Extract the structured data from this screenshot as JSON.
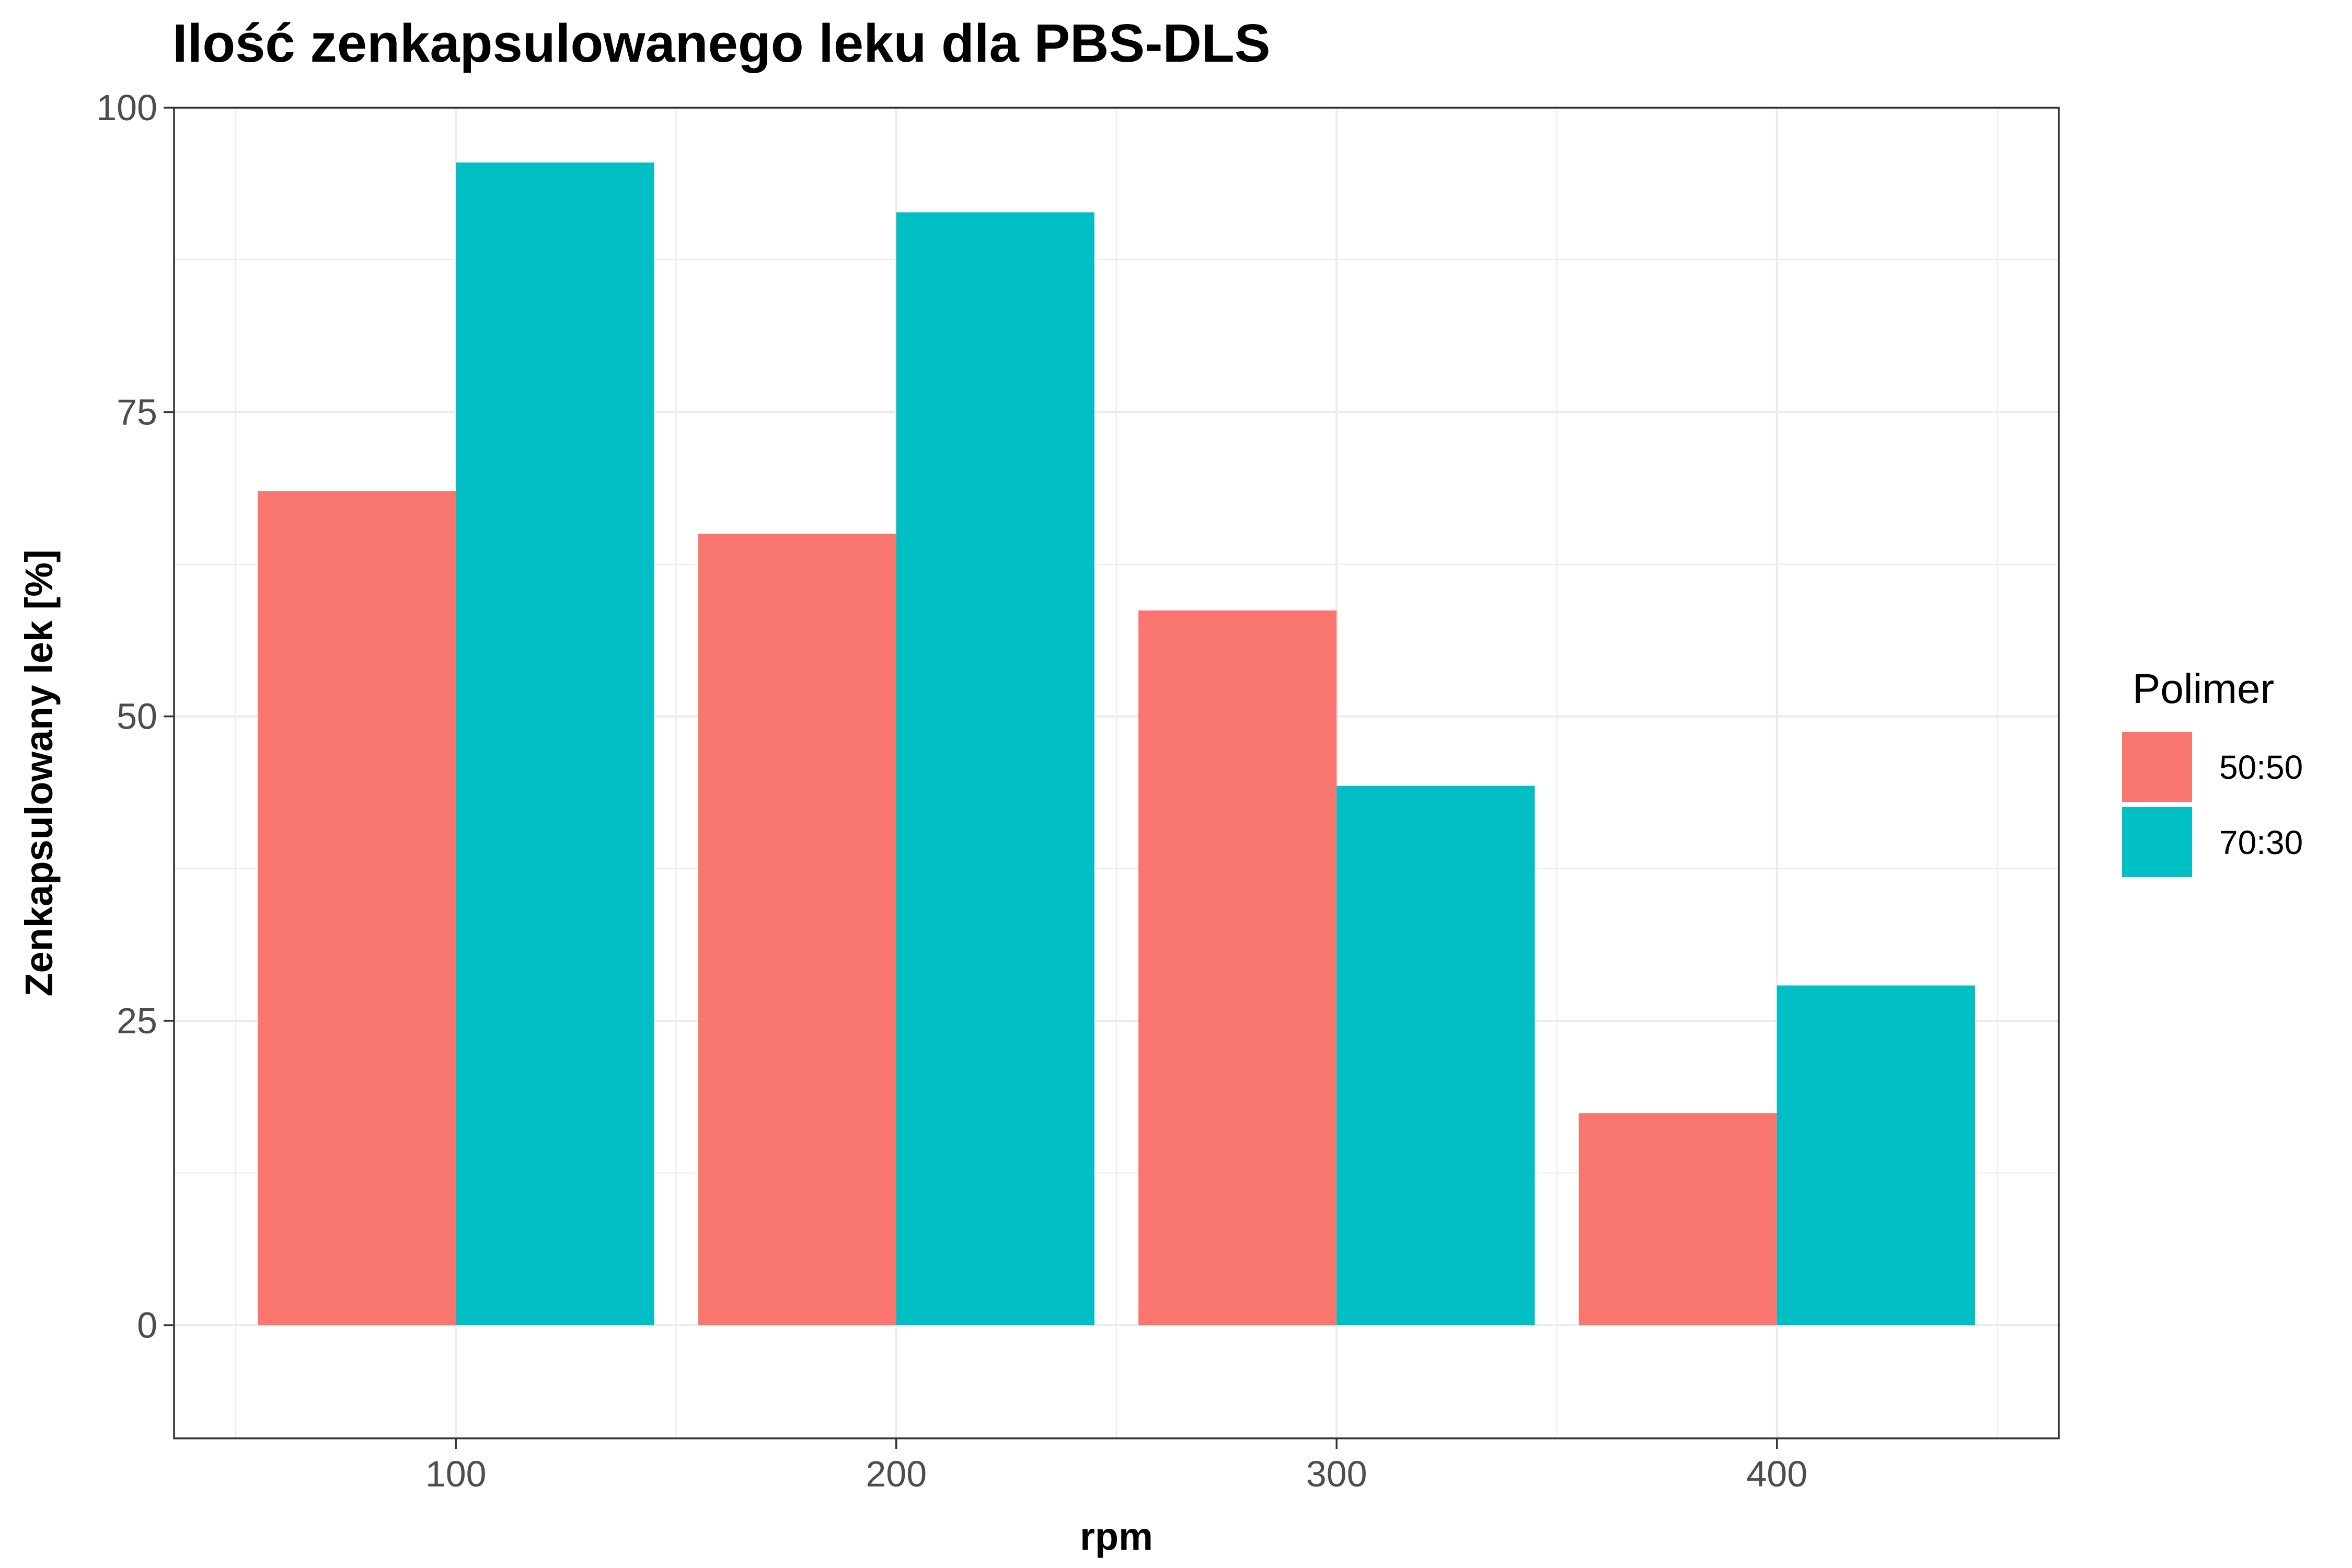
{
  "chart_data": {
    "type": "bar",
    "title": "Ilość zenkapsulowanego leku dla PBS-DLS",
    "xlabel": "rpm",
    "ylabel": "Zenkapsulowany lek [%]",
    "categories": [
      "100",
      "200",
      "300",
      "400"
    ],
    "x": [
      100,
      200,
      300,
      400
    ],
    "xlim": [
      36,
      464
    ],
    "ylim": [
      -9.3,
      100
    ],
    "yticks": [
      0,
      25,
      50,
      75,
      100
    ],
    "grid": true,
    "legend": {
      "title": "Polimer",
      "position": "right"
    },
    "series": [
      {
        "name": "50:50",
        "color": "#F8766D",
        "values": [
          68.5,
          65.0,
          58.7,
          17.4
        ]
      },
      {
        "name": "70:30",
        "color": "#00BFC4",
        "values": [
          95.5,
          91.4,
          44.3,
          27.9
        ]
      }
    ]
  }
}
